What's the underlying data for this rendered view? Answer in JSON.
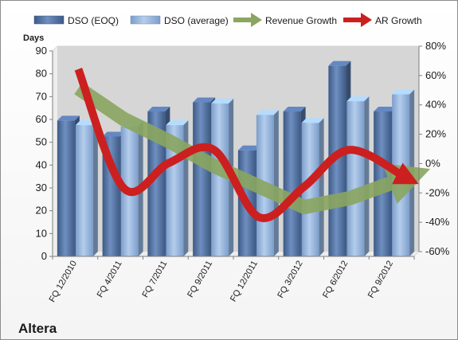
{
  "chart_data": {
    "type": "bar",
    "title": "",
    "company": "Altera",
    "ylabel": "Days",
    "ylim": [
      0,
      90
    ],
    "y_ticks": [
      0,
      10,
      20,
      30,
      40,
      50,
      60,
      70,
      80,
      90
    ],
    "y2lim": [
      -60,
      80
    ],
    "y2_ticks": [
      "-60%",
      "-40%",
      "-20%",
      "0%",
      "20%",
      "40%",
      "60%",
      "80%"
    ],
    "legend_position": "top",
    "grid": false,
    "categories": [
      "FQ 12/2010",
      "FQ 4/2011",
      "FQ 7/2011",
      "FQ 9/2011",
      "FQ 12/2011",
      "FQ 3/2012",
      "FQ 6/2012",
      "FQ 9/2012"
    ],
    "series": [
      {
        "name": "DSO (EOQ)",
        "type": "bar",
        "axis": "left",
        "color": "#4f6d9c",
        "values": [
          59.5,
          52.5,
          63.5,
          67.5,
          46.5,
          63.5,
          83.5,
          63.5
        ]
      },
      {
        "name": "DSO (average)",
        "type": "bar",
        "axis": "left",
        "color": "#8fb0d9",
        "values": [
          57.5,
          57.0,
          57.5,
          67.0,
          62.0,
          58.5,
          68.0,
          71.0
        ]
      },
      {
        "name": "Revenue Growth",
        "type": "line",
        "axis": "right",
        "color": "#8aa660",
        "values": [
          53,
          32,
          17,
          0,
          -14,
          -28,
          -22,
          -8
        ]
      },
      {
        "name": "AR Growth",
        "type": "line",
        "axis": "right",
        "color": "#cc1f1f",
        "values": [
          66,
          -15,
          2,
          11,
          -35,
          -14,
          11,
          -8
        ]
      }
    ]
  }
}
